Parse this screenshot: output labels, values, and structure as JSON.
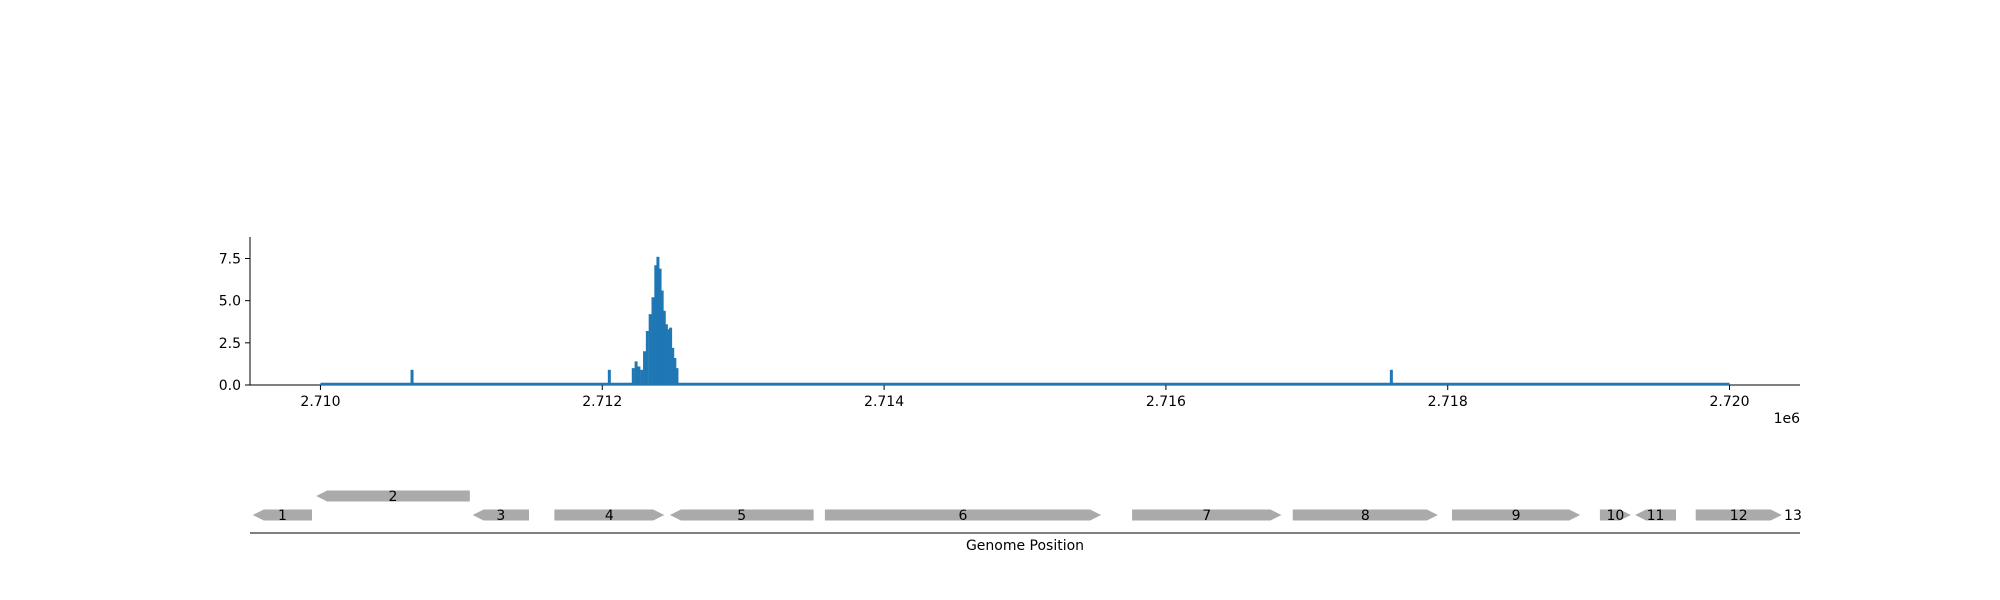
{
  "chart_data": [
    {
      "type": "bar",
      "title": "",
      "xlabel": "",
      "ylabel": "",
      "xlim": [
        2709500,
        2720500
      ],
      "ylim": [
        0,
        8.3
      ],
      "x_offset_label": "1e6",
      "x_ticks": [
        2710000,
        2712000,
        2714000,
        2716000,
        2718000,
        2720000
      ],
      "x_tick_labels": [
        "2.710",
        "2.712",
        "2.714",
        "2.716",
        "2.718",
        "2.720"
      ],
      "y_ticks": [
        0,
        2.5,
        5,
        7.5
      ],
      "y_tick_labels": [
        "0.0",
        "2.5",
        "5.0",
        "7.5"
      ],
      "baseline": {
        "x": [
          2710000,
          2720000
        ],
        "y": 0
      },
      "bar_color": "#1f77b4",
      "bars": [
        {
          "x": 2710650,
          "y": 0.9
        },
        {
          "x": 2712050,
          "y": 0.9
        },
        {
          "x": 2712220,
          "y": 1.0
        },
        {
          "x": 2712240,
          "y": 1.4
        },
        {
          "x": 2712260,
          "y": 1.1
        },
        {
          "x": 2712280,
          "y": 0.9
        },
        {
          "x": 2712300,
          "y": 2.0
        },
        {
          "x": 2712320,
          "y": 3.2
        },
        {
          "x": 2712340,
          "y": 4.2
        },
        {
          "x": 2712360,
          "y": 5.2
        },
        {
          "x": 2712380,
          "y": 7.1
        },
        {
          "x": 2712395,
          "y": 7.6
        },
        {
          "x": 2712410,
          "y": 6.9
        },
        {
          "x": 2712425,
          "y": 5.6
        },
        {
          "x": 2712440,
          "y": 4.4
        },
        {
          "x": 2712455,
          "y": 3.6
        },
        {
          "x": 2712470,
          "y": 3.3
        },
        {
          "x": 2712485,
          "y": 3.4
        },
        {
          "x": 2712500,
          "y": 2.2
        },
        {
          "x": 2712515,
          "y": 1.6
        },
        {
          "x": 2712530,
          "y": 1.0
        },
        {
          "x": 2717600,
          "y": 0.9
        }
      ]
    },
    {
      "type": "gene_map",
      "xlabel": "Genome Position",
      "gene_color": "#aaaaaa",
      "genes": [
        {
          "label": "1",
          "start": 2709520,
          "end": 2709940,
          "strand": "-",
          "row": 0
        },
        {
          "label": "2",
          "start": 2709970,
          "end": 2711060,
          "strand": "-",
          "row": 1
        },
        {
          "label": "3",
          "start": 2711080,
          "end": 2711480,
          "strand": "-",
          "row": 0
        },
        {
          "label": "4",
          "start": 2711660,
          "end": 2712440,
          "strand": "+",
          "row": 0
        },
        {
          "label": "5",
          "start": 2712480,
          "end": 2713500,
          "strand": "-",
          "row": 0
        },
        {
          "label": "6",
          "start": 2713580,
          "end": 2715540,
          "strand": "+",
          "row": 0
        },
        {
          "label": "7",
          "start": 2715760,
          "end": 2716820,
          "strand": "+",
          "row": 0
        },
        {
          "label": "8",
          "start": 2716900,
          "end": 2717930,
          "strand": "+",
          "row": 0
        },
        {
          "label": "9",
          "start": 2718030,
          "end": 2718940,
          "strand": "+",
          "row": 0
        },
        {
          "label": "10",
          "start": 2719080,
          "end": 2719300,
          "strand": "+",
          "row": 0
        },
        {
          "label": "11",
          "start": 2719330,
          "end": 2719620,
          "strand": "-",
          "row": 0
        },
        {
          "label": "12",
          "start": 2719760,
          "end": 2720370,
          "strand": "+",
          "row": 0
        },
        {
          "label": "13",
          "start": 2720450,
          "end": 2720450,
          "strand": "+",
          "row": 0
        }
      ]
    }
  ]
}
